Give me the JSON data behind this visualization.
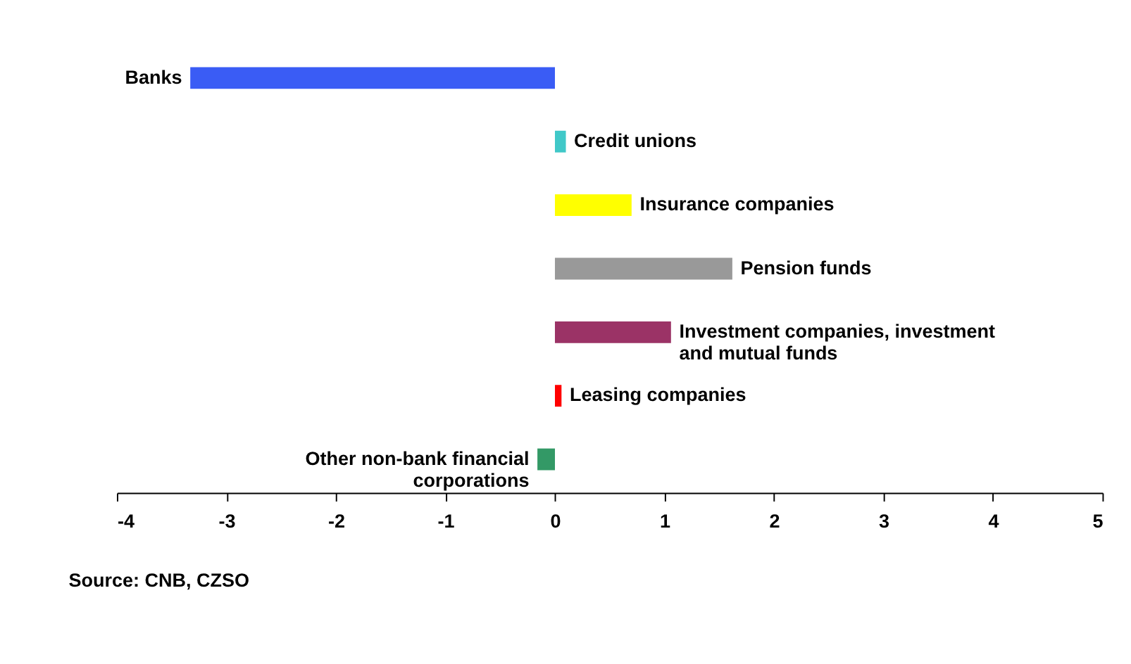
{
  "chart_data": {
    "type": "bar",
    "orientation": "horizontal",
    "categories": [
      "Banks",
      "Credit unions",
      "Insurance companies",
      "Pension funds",
      "Investment companies, investment and mutual funds",
      "Leasing companies",
      "Other non-bank financial corporations"
    ],
    "values": [
      -3.33,
      0.1,
      0.7,
      1.62,
      1.06,
      0.06,
      -0.16
    ],
    "colors": [
      "#3a5cf5",
      "#40c8c8",
      "#ffff00",
      "#999999",
      "#9b3366",
      "#ff0000",
      "#339966"
    ],
    "xlim": [
      -4,
      5
    ],
    "xticks": [
      -4,
      -3,
      -2,
      -1,
      0,
      1,
      2,
      3,
      4,
      5
    ],
    "grid": false,
    "annotations": [
      "Source: CNB, CZSO"
    ]
  }
}
